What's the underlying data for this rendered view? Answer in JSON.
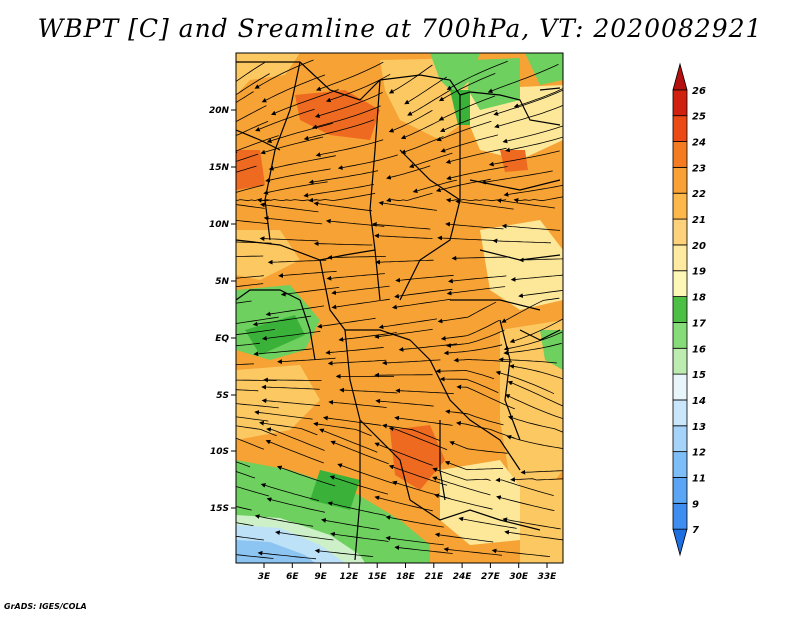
{
  "title": "WBPT [C] and Sreamline at 700hPa, VT: 2020082921",
  "footer": "GrADS: IGES/COLA",
  "lat_labels": [
    "20N",
    "15N",
    "10N",
    "5N",
    "EQ",
    "5S",
    "10S",
    "15S"
  ],
  "lon_labels": [
    "3E",
    "6E",
    "9E",
    "12E",
    "15E",
    "18E",
    "21E",
    "24E",
    "27E",
    "30E",
    "33E"
  ],
  "colorbar": {
    "labels": [
      "7",
      "9",
      "11",
      "12",
      "13",
      "14",
      "15",
      "16",
      "17",
      "18",
      "19",
      "20",
      "21",
      "22",
      "23",
      "24",
      "25",
      "26"
    ],
    "colors": [
      "#1e6fe0",
      "#3d8ef0",
      "#5aa6f5",
      "#7dbdf8",
      "#a6d3fa",
      "#cae6fb",
      "#e8f6fc",
      "#bdecb0",
      "#86dc78",
      "#4cc044",
      "#fef8b8",
      "#feeaa0",
      "#fdd27a",
      "#fdb84c",
      "#f9a134",
      "#f57b20",
      "#ec4a15",
      "#d0200f",
      "#b41010"
    ]
  },
  "palette": {
    "orange": "#f7a234",
    "light_orange": "#fcc862",
    "yellow": "#fde89a",
    "green": "#6ed05e",
    "dark_green": "#3ab23a",
    "red_orange": "#ee6a20",
    "light_blue": "#bde2f8",
    "blue": "#8cc4f2",
    "mint": "#cdf0c8"
  }
}
